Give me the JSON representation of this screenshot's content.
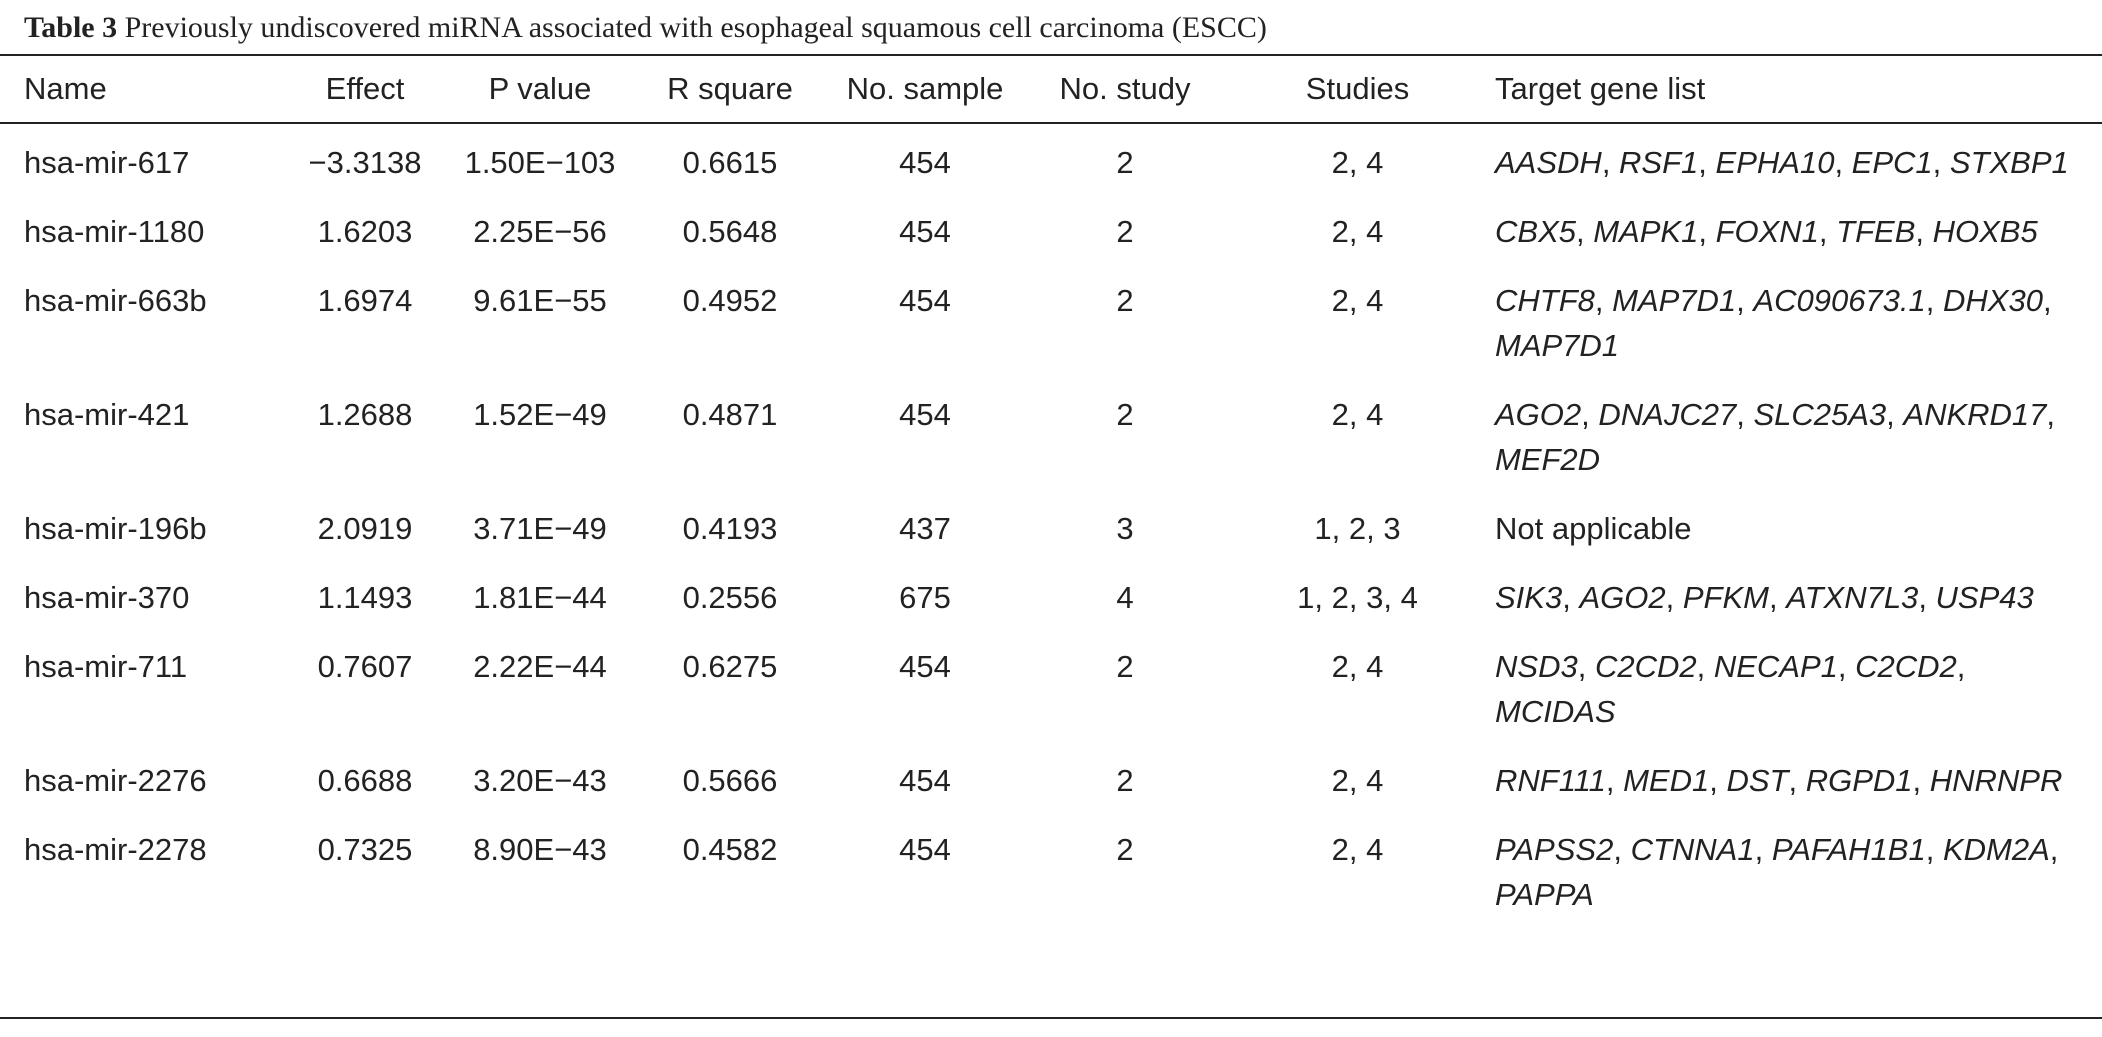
{
  "caption": {
    "label": "Table 3",
    "text": "Previously undiscovered miRNA associated with esophageal squamous cell carcinoma (ESCC)"
  },
  "table": {
    "headers": [
      "Name",
      "Effect",
      "P value",
      "R square",
      "No. sample",
      "No. study",
      "Studies",
      "Target gene list"
    ],
    "rows": [
      {
        "name": "hsa-mir-617",
        "effect": "−3.3138",
        "p_value": "1.50E−103",
        "r_square": "0.6615",
        "no_sample": "454",
        "no_study": "2",
        "studies": "2, 4",
        "genes": [
          "AASDH",
          "RSF1",
          "EPHA10",
          "EPC1",
          "STXBP1"
        ]
      },
      {
        "name": "hsa-mir-1180",
        "effect": "1.6203",
        "p_value": "2.25E−56",
        "r_square": "0.5648",
        "no_sample": "454",
        "no_study": "2",
        "studies": "2, 4",
        "genes": [
          "CBX5",
          "MAPK1",
          "FOXN1",
          "TFEB",
          "HOXB5"
        ]
      },
      {
        "name": "hsa-mir-663b",
        "effect": "1.6974",
        "p_value": "9.61E−55",
        "r_square": "0.4952",
        "no_sample": "454",
        "no_study": "2",
        "studies": "2, 4",
        "genes": [
          "CHTF8",
          "MAP7D1",
          "AC090673.1",
          "DHX30",
          "MAP7D1"
        ]
      },
      {
        "name": "hsa-mir-421",
        "effect": "1.2688",
        "p_value": "1.52E−49",
        "r_square": "0.4871",
        "no_sample": "454",
        "no_study": "2",
        "studies": "2, 4",
        "genes": [
          "AGO2",
          "DNAJC27",
          "SLC25A3",
          "ANKRD17",
          "MEF2D"
        ]
      },
      {
        "name": "hsa-mir-196b",
        "effect": "2.0919",
        "p_value": "3.71E−49",
        "r_square": "0.4193",
        "no_sample": "437",
        "no_study": "3",
        "studies": "1, 2, 3",
        "genes": [],
        "genes_text": "Not applicable"
      },
      {
        "name": "hsa-mir-370",
        "effect": "1.1493",
        "p_value": "1.81E−44",
        "r_square": "0.2556",
        "no_sample": "675",
        "no_study": "4",
        "studies": "1, 2, 3, 4",
        "genes": [
          "SIK3",
          "AGO2",
          "PFKM",
          "ATXN7L3",
          "USP43"
        ]
      },
      {
        "name": "hsa-mir-711",
        "effect": "0.7607",
        "p_value": "2.22E−44",
        "r_square": "0.6275",
        "no_sample": "454",
        "no_study": "2",
        "studies": "2, 4",
        "genes": [
          "NSD3",
          "C2CD2",
          "NECAP1",
          "C2CD2",
          "MCIDAS"
        ]
      },
      {
        "name": "hsa-mir-2276",
        "effect": "0.6688",
        "p_value": "3.20E−43",
        "r_square": "0.5666",
        "no_sample": "454",
        "no_study": "2",
        "studies": "2, 4",
        "genes": [
          "RNF111",
          "MED1",
          "DST",
          "RGPD1",
          "HNRNPR"
        ]
      },
      {
        "name": "hsa-mir-2278",
        "effect": "0.7325",
        "p_value": "8.90E−43",
        "r_square": "0.4582",
        "no_sample": "454",
        "no_study": "2",
        "studies": "2, 4",
        "genes": [
          "PAPSS2",
          "CTNNA1",
          "PAFAH1B1",
          "KDM2A",
          "PAPPA"
        ]
      }
    ]
  }
}
